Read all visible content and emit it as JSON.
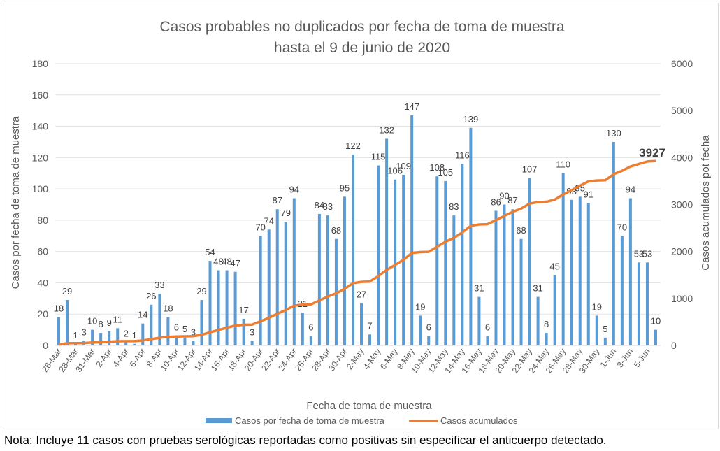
{
  "chart_data": {
    "type": "bar+line",
    "title": [
      "Casos probables no duplicados por fecha de toma de muestra",
      "hasta el 9 de junio de 2020"
    ],
    "xlabel": "Fecha de toma de muestra",
    "ylabel": "Casos por fecha de toma de muestra",
    "y2label": "Casos acumulados pot fecha",
    "ylim": [
      0,
      180
    ],
    "y_ticks": [
      0,
      20,
      40,
      60,
      80,
      100,
      120,
      140,
      160,
      180
    ],
    "y2lim": [
      0,
      6000
    ],
    "y2_ticks": [
      0,
      1000,
      2000,
      3000,
      4000,
      5000,
      6000
    ],
    "grid": true,
    "legend_position": "bottom",
    "categories": [
      "26-Mar",
      "27-Mar",
      "28-Mar",
      "30-Mar",
      "31-Mar",
      "1-Apr",
      "2-Apr",
      "3-Apr",
      "4-Apr",
      "5-Apr",
      "6-Apr",
      "7-Apr",
      "8-Apr",
      "9-Apr",
      "10-Apr",
      "11-Apr",
      "12-Apr",
      "13-Apr",
      "14-Apr",
      "15-Apr",
      "16-Apr",
      "17-Apr",
      "18-Apr",
      "19-Apr",
      "20-Apr",
      "21-Apr",
      "22-Apr",
      "23-Apr",
      "24-Apr",
      "25-Apr",
      "26-Apr",
      "27-Apr",
      "28-Apr",
      "29-Apr",
      "30-Apr",
      "1-May",
      "2-May",
      "3-May",
      "4-May",
      "5-May",
      "6-May",
      "7-May",
      "8-May",
      "9-May",
      "10-May",
      "11-May",
      "12-May",
      "13-May",
      "14-May",
      "15-May",
      "16-May",
      "17-May",
      "18-May",
      "19-May",
      "20-May",
      "21-May",
      "22-May",
      "23-May",
      "24-May",
      "25-May",
      "26-May",
      "27-May",
      "28-May",
      "29-May",
      "30-May",
      "31-May",
      "1-Jun",
      "2-Jun",
      "3-Jun",
      "4-Jun",
      "5-Jun",
      "6-Jun"
    ],
    "tick_labels": [
      "26-Mar",
      "28-Mar",
      "31-Mar",
      "2-Apr",
      "4-Apr",
      "6-Apr",
      "8-Apr",
      "10-Apr",
      "12-Apr",
      "14-Apr",
      "16-Apr",
      "18-Apr",
      "20-Apr",
      "22-Apr",
      "24-Apr",
      "26-Apr",
      "28-Apr",
      "30-Apr",
      "2-May",
      "4-May",
      "6-May",
      "8-May",
      "10-May",
      "12-May",
      "14-May",
      "16-May",
      "18-May",
      "20-May",
      "22-May",
      "24-May",
      "26-May",
      "28-May",
      "30-May",
      "1-Jun",
      "3-Jun",
      "5-Jun"
    ],
    "series": [
      {
        "name": "Casos por fecha de toma de muestra",
        "type": "bar",
        "color": "#5b9bd5",
        "axis": "left",
        "values": [
          18,
          29,
          1,
          3,
          10,
          8,
          9,
          11,
          2,
          1,
          14,
          26,
          33,
          18,
          6,
          5,
          3,
          29,
          54,
          48,
          48,
          47,
          17,
          3,
          70,
          74,
          87,
          79,
          94,
          21,
          6,
          84,
          83,
          68,
          95,
          122,
          27,
          7,
          115,
          132,
          106,
          109,
          147,
          19,
          6,
          108,
          105,
          83,
          116,
          139,
          31,
          6,
          86,
          90,
          87,
          68,
          107,
          31,
          8,
          45,
          110,
          93,
          95,
          91,
          19,
          5,
          130,
          70,
          94,
          53,
          53,
          10
        ]
      },
      {
        "name": "Casos acumulados",
        "type": "line",
        "color": "#ed7d31",
        "axis": "right",
        "cumulative_of": 0
      }
    ],
    "annotations": [
      {
        "text": "3927",
        "target": "last-cumulative-point"
      }
    ]
  },
  "note": "Nota: Incluye 11 casos con pruebas serológicas reportadas como positivas sin especificar el anticuerpo detectado."
}
